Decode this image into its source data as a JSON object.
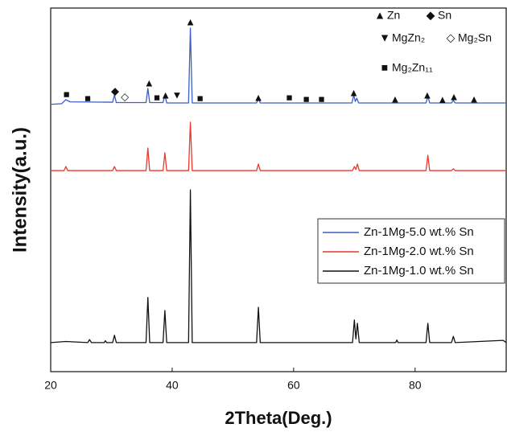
{
  "chart_data": {
    "type": "line",
    "x_label": "2Theta(Deg.)",
    "y_label": "Intensity(a.u.)",
    "xlim": [
      20,
      95
    ],
    "xticks": [
      20,
      40,
      60,
      80
    ],
    "ylim": [
      0,
      100
    ],
    "legend": "right",
    "series": [
      {
        "name": "Zn-1Mg-5.0 wt.% Sn",
        "color": "#3a5fbf",
        "x": [
          20,
          21.8,
          22.5,
          23.2,
          30.2,
          30.5,
          30.8,
          35.7,
          36.0,
          36.3,
          38.5,
          38.8,
          39.1,
          42.7,
          43.0,
          43.3,
          53.9,
          54.2,
          54.5,
          69.6,
          69.9,
          70.15,
          70.4,
          70.7,
          81.8,
          82.1,
          82.4,
          86.0,
          86.3,
          86.6,
          95
        ],
        "values": [
          73.5,
          73.7,
          74.8,
          74.2,
          74.1,
          76.1,
          74.0,
          74.0,
          77.9,
          74.0,
          74.0,
          76.1,
          73.9,
          73.9,
          94.5,
          73.9,
          73.9,
          75.2,
          73.9,
          73.9,
          76.1,
          74.3,
          75.2,
          73.9,
          73.9,
          75.7,
          73.9,
          73.9,
          74.6,
          73.9,
          73.9
        ]
      },
      {
        "name": "Zn-1Mg-2.0 wt.% Sn",
        "color": "#e8392c",
        "x": [
          20,
          22.2,
          22.5,
          22.8,
          30.2,
          30.5,
          30.8,
          35.7,
          36.0,
          36.3,
          38.5,
          38.8,
          39.1,
          42.7,
          43.0,
          43.3,
          53.9,
          54.2,
          54.5,
          69.7,
          70.0,
          70.25,
          70.5,
          70.8,
          81.8,
          82.1,
          82.4,
          86.0,
          86.3,
          86.6,
          95
        ],
        "values": [
          55.3,
          55.3,
          56.4,
          55.3,
          55.3,
          56.4,
          55.3,
          55.3,
          61.5,
          55.3,
          55.3,
          60.2,
          55.3,
          55.3,
          68.6,
          55.3,
          55.3,
          57.1,
          55.3,
          55.3,
          56.4,
          55.6,
          57.1,
          55.3,
          55.3,
          59.5,
          55.3,
          55.3,
          55.8,
          55.3,
          55.3
        ]
      },
      {
        "name": "Zn-1Mg-1.0 wt.% Sn",
        "color": "#111111",
        "x": [
          20,
          22.5,
          26.1,
          26.4,
          26.7,
          28.8,
          29.0,
          29.2,
          30.2,
          30.5,
          30.8,
          35.7,
          36.0,
          36.3,
          38.5,
          38.8,
          39.1,
          42.7,
          43.0,
          43.3,
          53.9,
          54.2,
          54.5,
          69.7,
          70.0,
          70.25,
          70.5,
          70.8,
          76.8,
          77.0,
          77.2,
          81.8,
          82.1,
          82.4,
          86.0,
          86.3,
          86.6,
          94.5,
          95
        ],
        "values": [
          8,
          8.3,
          8,
          8.8,
          8,
          8,
          8.5,
          8,
          8,
          10,
          8,
          8,
          20.4,
          8,
          8,
          16.8,
          8,
          8,
          50,
          8,
          8,
          17.7,
          8,
          8,
          14.2,
          9,
          13.3,
          8,
          8,
          8.7,
          8,
          8,
          13.3,
          8,
          8,
          9.7,
          8,
          8.6,
          8
        ]
      }
    ],
    "annotations": [
      {
        "symbol": "■",
        "x": 22.6,
        "y": 76.1
      },
      {
        "symbol": "■",
        "x": 26.1,
        "y": 75.0
      },
      {
        "symbol": "◆",
        "x": 30.6,
        "y": 77.0
      },
      {
        "symbol": "◇",
        "x": 32.2,
        "y": 75.4
      },
      {
        "symbol": "▲",
        "x": 36.2,
        "y": 79.2
      },
      {
        "symbol": "■",
        "x": 37.5,
        "y": 75.2
      },
      {
        "symbol": "▲",
        "x": 38.9,
        "y": 75.9
      },
      {
        "symbol": "▼",
        "x": 40.8,
        "y": 75.9
      },
      {
        "symbol": "▲",
        "x": 43.0,
        "y": 96.0
      },
      {
        "symbol": "■",
        "x": 44.6,
        "y": 75.0
      },
      {
        "symbol": "▲",
        "x": 54.2,
        "y": 75.2
      },
      {
        "symbol": "■",
        "x": 59.3,
        "y": 75.2
      },
      {
        "symbol": "■",
        "x": 62.1,
        "y": 74.8
      },
      {
        "symbol": "■",
        "x": 64.6,
        "y": 74.8
      },
      {
        "symbol": "▲",
        "x": 69.9,
        "y": 76.5
      },
      {
        "symbol": "▲",
        "x": 76.7,
        "y": 74.8
      },
      {
        "symbol": "▲",
        "x": 82.0,
        "y": 75.9
      },
      {
        "symbol": "▲",
        "x": 84.5,
        "y": 74.6
      },
      {
        "symbol": "▲",
        "x": 86.4,
        "y": 75.4
      },
      {
        "symbol": "▲",
        "x": 89.7,
        "y": 74.8
      }
    ],
    "phase_key": [
      {
        "symbol": "▲",
        "label": "Zn"
      },
      {
        "symbol": "◆",
        "label": "Sn"
      },
      {
        "symbol": "▼",
        "label": "MgZn₂"
      },
      {
        "symbol": "◇",
        "label": "Mg₂Sn"
      },
      {
        "symbol": "■",
        "label": "Mg₂Zn₁₁"
      }
    ]
  }
}
